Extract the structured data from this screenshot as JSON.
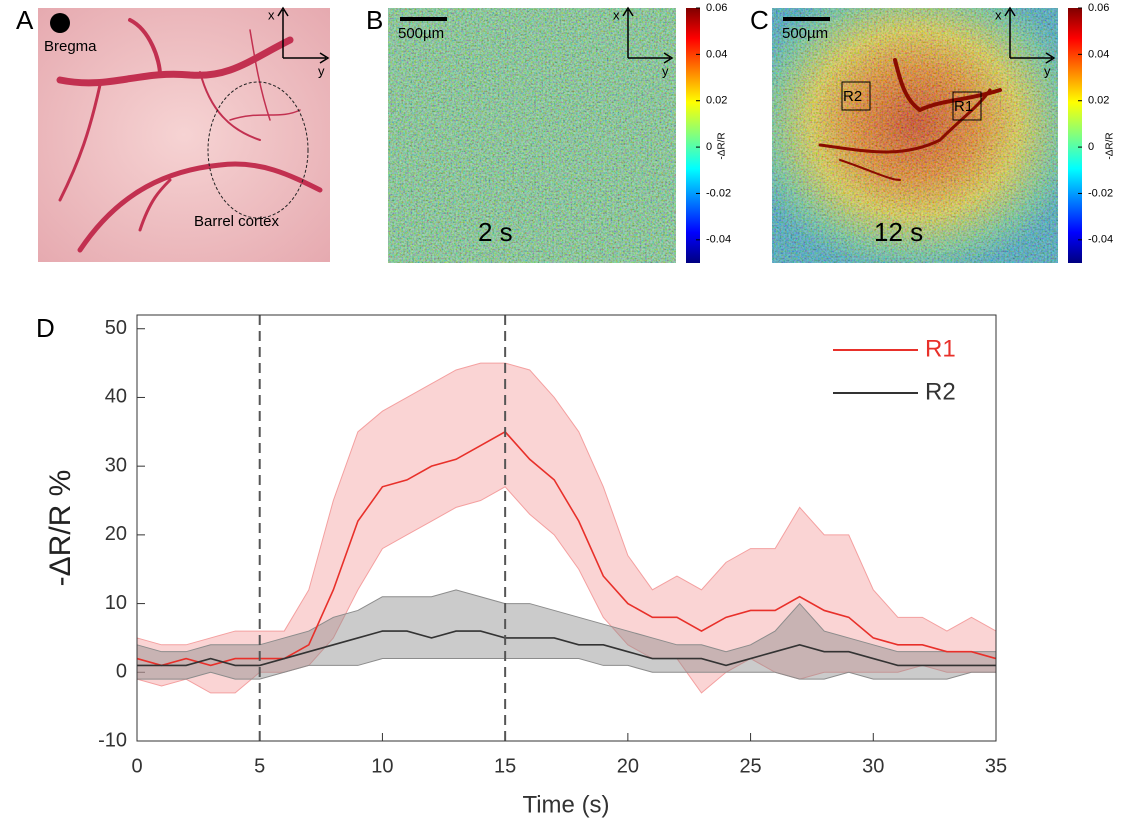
{
  "panels": {
    "a": {
      "label": "A",
      "bregma": "Bregma",
      "region": "Barrel cortex",
      "axis_x": "x",
      "axis_y": "y"
    },
    "b": {
      "label": "B",
      "scale": "500µm",
      "time": "2 s",
      "axis_x": "x",
      "axis_y": "y"
    },
    "c": {
      "label": "C",
      "scale": "500µm",
      "time": "12 s",
      "axis_x": "x",
      "axis_y": "y",
      "roi1": "R1",
      "roi2": "R2"
    },
    "colorbar": {
      "label": "-ΔR/R",
      "clim": [
        -0.05,
        0.06
      ],
      "ticks": [
        0.06,
        0.04,
        0.02,
        0,
        -0.02,
        -0.04
      ]
    },
    "d": {
      "label": "D"
    }
  },
  "chart_data": {
    "type": "line",
    "xlabel": "Time (s)",
    "ylabel": "-ΔR/R %",
    "x": [
      0,
      1,
      2,
      3,
      4,
      5,
      6,
      7,
      8,
      9,
      10,
      11,
      12,
      13,
      14,
      15,
      16,
      17,
      18,
      19,
      20,
      21,
      22,
      23,
      24,
      25,
      26,
      27,
      28,
      29,
      30,
      31,
      32,
      33,
      34,
      35
    ],
    "series": [
      {
        "name": "R1",
        "color": "#e8302a",
        "band_color": "#f4a0a0",
        "values": [
          2,
          1,
          2,
          1,
          2,
          2,
          2,
          4,
          12,
          22,
          27,
          28,
          30,
          31,
          33,
          35,
          31,
          28,
          22,
          14,
          10,
          8,
          8,
          6,
          8,
          9,
          9,
          11,
          9,
          8,
          5,
          4,
          4,
          3,
          3,
          2
        ],
        "upper": [
          5,
          4,
          4,
          5,
          6,
          6,
          6,
          12,
          25,
          35,
          38,
          40,
          42,
          44,
          45,
          45,
          44,
          40,
          35,
          27,
          17,
          12,
          14,
          12,
          16,
          18,
          18,
          24,
          20,
          20,
          12,
          8,
          8,
          6,
          8,
          6
        ],
        "lower": [
          -1,
          -2,
          -1,
          -3,
          -3,
          0,
          0,
          1,
          5,
          12,
          18,
          20,
          22,
          24,
          25,
          27,
          23,
          20,
          15,
          8,
          4,
          2,
          2,
          -3,
          0,
          2,
          0,
          -1,
          0,
          0,
          0,
          0,
          1,
          0,
          0,
          0
        ]
      },
      {
        "name": "R2",
        "color": "#333333",
        "band_color": "#8c8c8c",
        "values": [
          1,
          1,
          1,
          2,
          1,
          1,
          2,
          3,
          4,
          5,
          6,
          6,
          5,
          6,
          6,
          5,
          5,
          5,
          4,
          4,
          3,
          2,
          2,
          2,
          1,
          2,
          3,
          4,
          3,
          3,
          2,
          1,
          1,
          1,
          1,
          1
        ],
        "upper": [
          4,
          3,
          3,
          4,
          4,
          4,
          5,
          6,
          8,
          9,
          11,
          11,
          11,
          12,
          11,
          10,
          10,
          9,
          8,
          7,
          6,
          5,
          4,
          4,
          3,
          4,
          6,
          10,
          6,
          5,
          4,
          3,
          3,
          3,
          3,
          3
        ],
        "lower": [
          -1,
          -1,
          -1,
          0,
          -1,
          -1,
          0,
          1,
          1,
          1,
          2,
          2,
          2,
          2,
          2,
          2,
          2,
          2,
          2,
          1,
          1,
          0,
          0,
          0,
          0,
          0,
          0,
          -1,
          -1,
          0,
          -1,
          -1,
          -1,
          -1,
          0,
          0
        ]
      }
    ],
    "vlines": [
      5,
      15
    ],
    "xlim": [
      0,
      35
    ],
    "xticks": [
      0,
      5,
      10,
      15,
      20,
      25,
      30,
      35
    ],
    "ylim": [
      -10,
      52
    ],
    "yticks": [
      -10,
      0,
      10,
      20,
      30,
      40,
      50
    ],
    "grid": false,
    "legend": "upper right"
  }
}
